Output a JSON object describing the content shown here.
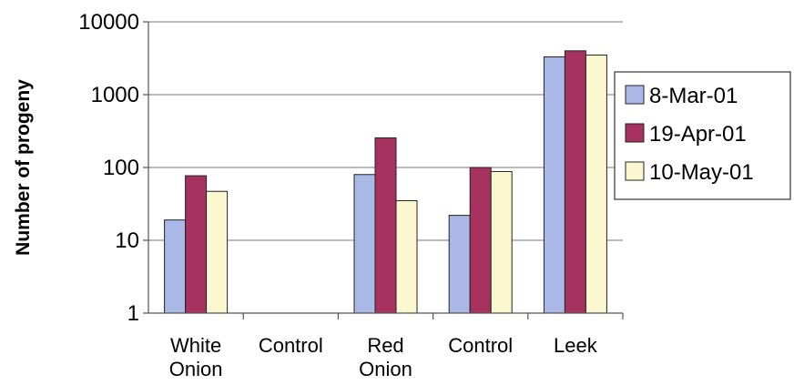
{
  "chart_data": {
    "type": "bar",
    "title": "",
    "xlabel": "",
    "ylabel": "Number of progeny",
    "yscale": "log",
    "ylim": [
      1,
      10000
    ],
    "yticks": [
      "1",
      "10",
      "100",
      "1000",
      "10000"
    ],
    "grid": "horizontal",
    "legend_position": "right",
    "categories": [
      [
        "White",
        "Onion"
      ],
      [
        "Control"
      ],
      [
        "Red",
        "Onion"
      ],
      [
        "Control"
      ],
      [
        "Leek"
      ]
    ],
    "series": [
      {
        "name": "8-Mar-01",
        "color": "#a9b8e6",
        "values": [
          19,
          null,
          80,
          22,
          3300
        ]
      },
      {
        "name": "19-Apr-01",
        "color": "#a8325f",
        "values": [
          77,
          null,
          255,
          100,
          4000
        ]
      },
      {
        "name": "10-May-01",
        "color": "#fbf8cf",
        "values": [
          47,
          null,
          35,
          88,
          3500
        ]
      }
    ]
  }
}
